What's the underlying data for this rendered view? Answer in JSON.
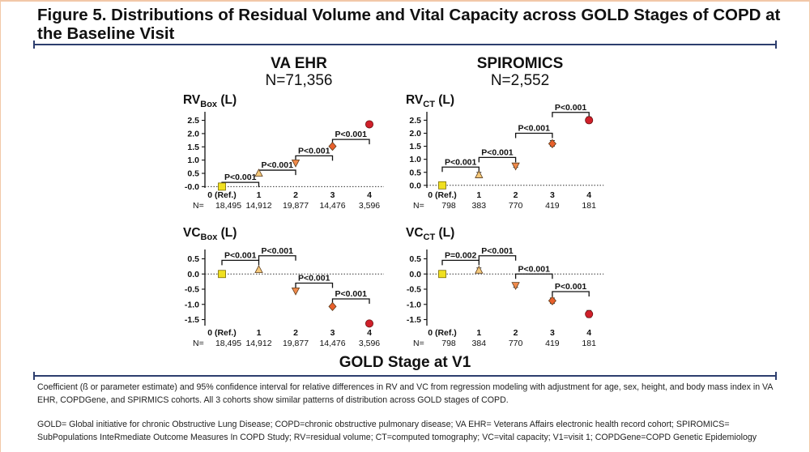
{
  "figure": {
    "title": "Figure 5. Distributions of Residual Volume and Vital Capacity across GOLD Stages of COPD at the Baseline Visit",
    "x_axis_title": "GOLD Stage at V1",
    "caption1": "Coefficient (ß or parameter estimate) and 95% confidence interval for relative differences in RV and VC from regression modeling with adjustment for age, sex, height, and body mass index in VA EHR, COPDGene, and SPIRMICS cohorts. All 3 cohorts show similar patterns of distribution across GOLD stages of COPD.",
    "caption2": "GOLD= Global initiative for chronic Obstructive Lung Disease; COPD=chronic obstructive pulmonary disease; VA EHR= Veterans Affairs electronic health record cohort; SPIROMICS= SubPopulations InteRmediate Outcome Measures In COPD Study; RV=residual volume; CT=computed tomography; VC=vital capacity; V1=visit 1; COPDGene=COPD Genetic Epidemiology"
  },
  "cohorts": {
    "left": {
      "name": "VA EHR",
      "n": "N=71,356"
    },
    "right": {
      "name": "SPIROMICS",
      "n": "N=2,552"
    }
  },
  "colors": {
    "stage0": "#f0e020",
    "stage1": "#f5c97a",
    "stage2": "#f08a4b",
    "stage3": "#e8602c",
    "stage4": "#d0202a",
    "axis": "#111111",
    "rule": "#2d3e6e"
  },
  "chart_data": [
    {
      "id": "rv-va",
      "type": "scatter",
      "ylabel_main": "RV",
      "ylabel_sub": "Box",
      "ylabel_unit": " (L)",
      "categories": [
        "0 (Ref.)",
        "1",
        "2",
        "3",
        "4"
      ],
      "n_prefix": "N=",
      "n_values": [
        "18,495",
        "14,912",
        "19,877",
        "14,476",
        "3,596"
      ],
      "values": [
        0,
        0.5,
        0.9,
        1.52,
        2.35
      ],
      "ci": [
        [
          0,
          0
        ],
        [
          0.47,
          0.53
        ],
        [
          0.87,
          0.93
        ],
        [
          1.49,
          1.55
        ],
        [
          2.31,
          2.39
        ]
      ],
      "yticks": [
        "-0.0",
        "0.5",
        "1.0",
        "1.5",
        "2.0",
        "2.5"
      ],
      "ylim": [
        -0.05,
        2.7
      ],
      "brackets": [
        {
          "from": 0,
          "to": 1,
          "y": 0.16,
          "label": "P<0.001"
        },
        {
          "from": 1,
          "to": 2,
          "y": 0.62,
          "label": "P<0.001"
        },
        {
          "from": 2,
          "to": 3,
          "y": 1.16,
          "label": "P<0.001"
        },
        {
          "from": 3,
          "to": 4,
          "y": 1.78,
          "label": "P<0.001"
        }
      ]
    },
    {
      "id": "rv-spiromics",
      "type": "scatter",
      "ylabel_main": "RV",
      "ylabel_sub": "CT",
      "ylabel_unit": " (L)",
      "categories": [
        "0 (Ref.)",
        "1",
        "2",
        "3",
        "4"
      ],
      "n_prefix": "N=",
      "n_values": [
        "798",
        "383",
        "770",
        "419",
        "181"
      ],
      "values": [
        0,
        0.4,
        0.75,
        1.6,
        2.5
      ],
      "ci": [
        [
          0,
          0
        ],
        [
          0.3,
          0.5
        ],
        [
          0.69,
          0.81
        ],
        [
          1.5,
          1.72
        ],
        [
          2.4,
          2.63
        ]
      ],
      "yticks": [
        "0.0",
        "0.5",
        "1.0",
        "1.5",
        "2.0",
        "2.5"
      ],
      "ylim": [
        -0.1,
        2.7
      ],
      "brackets": [
        {
          "from": 0,
          "to": 1,
          "y": 0.7,
          "label": "P<0.001"
        },
        {
          "from": 1,
          "to": 2,
          "y": 1.07,
          "label": "P<0.001"
        },
        {
          "from": 2,
          "to": 3,
          "y": 2.0,
          "label": "P<0.001"
        },
        {
          "from": 3,
          "to": 4,
          "y": 2.8,
          "label": "P<0.001"
        }
      ]
    },
    {
      "id": "vc-va",
      "type": "scatter",
      "ylabel_main": "VC",
      "ylabel_sub": "Box",
      "ylabel_unit": " (L)",
      "categories": [
        "0 (Ref.)",
        "1",
        "2",
        "3",
        "4"
      ],
      "n_prefix": "N=",
      "n_values": [
        "18,495",
        "14,912",
        "19,877",
        "14,476",
        "3,596"
      ],
      "values": [
        0,
        0.14,
        -0.55,
        -1.07,
        -1.63
      ],
      "ci": [
        [
          0,
          0
        ],
        [
          0.12,
          0.16
        ],
        [
          -0.57,
          -0.53
        ],
        [
          -1.09,
          -1.05
        ],
        [
          -1.66,
          -1.6
        ]
      ],
      "yticks": [
        "0.5",
        "0.0",
        "-0.5",
        "-1.0",
        "-1.5"
      ],
      "ylim": [
        -1.7,
        0.7
      ],
      "brackets": [
        {
          "from": 0,
          "to": 1,
          "y": 0.45,
          "label": "P<0.001"
        },
        {
          "from": 1,
          "to": 2,
          "y": 0.6,
          "label": "P<0.001"
        },
        {
          "from": 2,
          "to": 3,
          "y": -0.3,
          "label": "P<0.001"
        },
        {
          "from": 3,
          "to": 4,
          "y": -0.82,
          "label": "P<0.001"
        }
      ]
    },
    {
      "id": "vc-spiromics",
      "type": "scatter",
      "ylabel_main": "VC",
      "ylabel_sub": "CT",
      "ylabel_unit": " (L)",
      "categories": [
        "0 (Ref.)",
        "1",
        "2",
        "3",
        "4"
      ],
      "n_prefix": "N=",
      "n_values": [
        "798",
        "384",
        "770",
        "419",
        "181"
      ],
      "values": [
        0,
        0.12,
        -0.37,
        -0.88,
        -1.32
      ],
      "ci": [
        [
          0,
          0
        ],
        [
          0.05,
          0.2
        ],
        [
          -0.44,
          -0.3
        ],
        [
          -0.97,
          -0.79
        ],
        [
          -1.43,
          -1.2
        ]
      ],
      "yticks": [
        "0.5",
        "0.0",
        "-0.5",
        "-1.0",
        "-1.5"
      ],
      "ylim": [
        -1.7,
        0.7
      ],
      "brackets": [
        {
          "from": 0,
          "to": 1,
          "y": 0.45,
          "label": "P=0.002"
        },
        {
          "from": 1,
          "to": 2,
          "y": 0.6,
          "label": "P<0.001"
        },
        {
          "from": 2,
          "to": 3,
          "y": 0.0,
          "label": "P<0.001"
        },
        {
          "from": 3,
          "to": 4,
          "y": -0.58,
          "label": "P<0.001"
        }
      ]
    }
  ]
}
